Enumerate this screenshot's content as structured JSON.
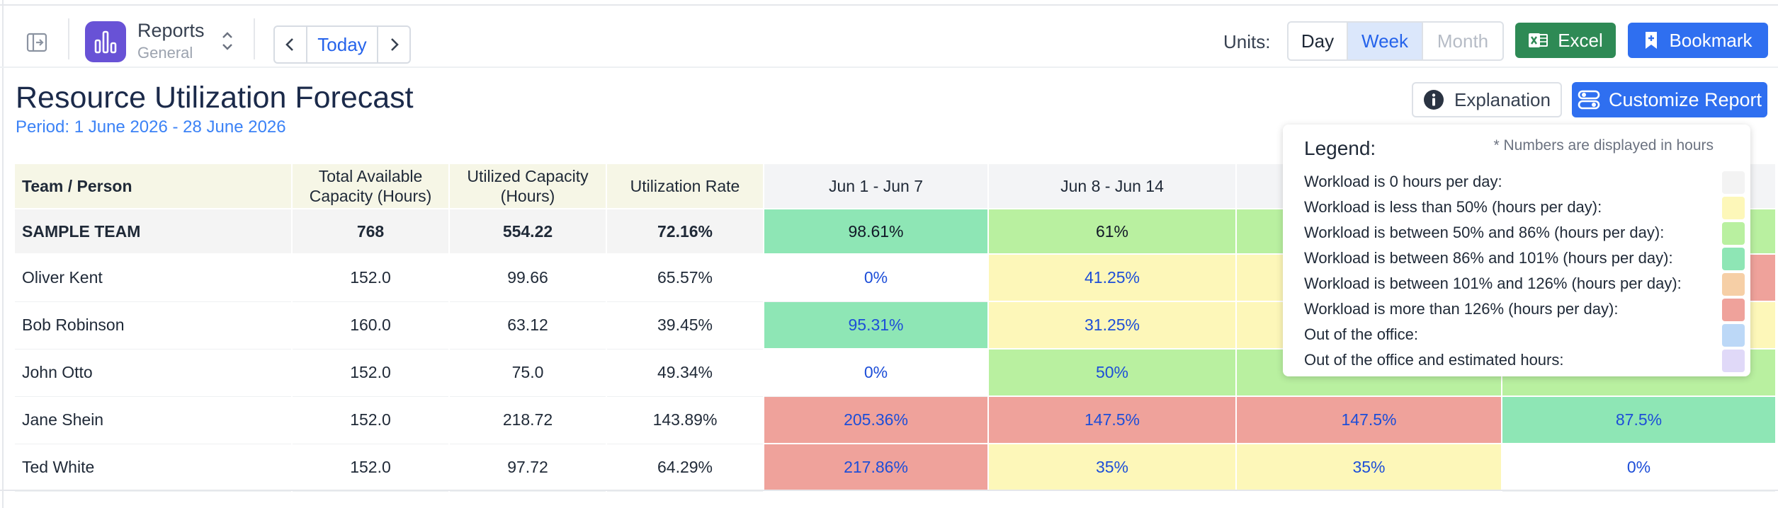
{
  "toolbar": {
    "app_title": "Reports",
    "app_subtitle": "General",
    "today_label": "Today",
    "units_label": "Units:",
    "units": [
      {
        "label": "Day",
        "selected": false
      },
      {
        "label": "Week",
        "selected": true
      },
      {
        "label": "Month",
        "selected": false,
        "disabled": true
      }
    ],
    "excel_label": "Excel",
    "bookmark_label": "Bookmark",
    "icons": [
      "sidebar-toggle-icon",
      "bar-chart-icon",
      "chevron-up-down-icon",
      "chevron-left-icon",
      "chevron-right-icon",
      "excel-icon",
      "bookmark-icon"
    ]
  },
  "report": {
    "title": "Resource Utilization Forecast",
    "period": "Period: 1 June 2026 - 28 June 2026",
    "explanation_label": "Explanation",
    "customize_label": "Customize Report"
  },
  "table": {
    "headers": {
      "team_person": "Team / Person",
      "total_capacity": "Total Available Capacity (Hours)",
      "utilized_capacity": "Utilized Capacity (Hours)",
      "utilization_rate": "Utilization Rate",
      "weeks": [
        "Jun 1 - Jun 7",
        "Jun 8 - Jun 14",
        "",
        ""
      ]
    },
    "team": {
      "name": "SAMPLE TEAM",
      "total": "768",
      "utilized": "554.22",
      "rate": "72.16%",
      "weeks": [
        "98.61%",
        "61%",
        "",
        ""
      ]
    },
    "people": [
      {
        "name": "Oliver Kent",
        "total": "152.0",
        "utilized": "99.66",
        "rate": "65.57%",
        "weeks": [
          "0%",
          "41.25%",
          "",
          ""
        ]
      },
      {
        "name": "Bob Robinson",
        "total": "160.0",
        "utilized": "63.12",
        "rate": "39.45%",
        "weeks": [
          "95.31%",
          "31.25%",
          "",
          ""
        ]
      },
      {
        "name": "John Otto",
        "total": "152.0",
        "utilized": "75.0",
        "rate": "49.34%",
        "weeks": [
          "0%",
          "50%",
          "",
          ""
        ]
      },
      {
        "name": "Jane Shein",
        "total": "152.0",
        "utilized": "218.72",
        "rate": "143.89%",
        "weeks": [
          "205.36%",
          "147.5%",
          "147.5%",
          "87.5%"
        ]
      },
      {
        "name": "Ted White",
        "total": "152.0",
        "utilized": "97.72",
        "rate": "64.29%",
        "weeks": [
          "217.86%",
          "35%",
          "35%",
          "0%"
        ]
      }
    ]
  },
  "colors": {
    "zero": "#f3f3f3",
    "under50": "#fdf7b9",
    "50to86": "#b9f0a0",
    "86to101": "#8ee6b5",
    "101to126": "#f6cfa6",
    "over126": "#efa29b",
    "out_of_office": "#bcd8f7",
    "out_of_office_est": "#e0d9f8",
    "white": "#ffffff"
  },
  "legend": {
    "title": "Legend:",
    "note": "* Numbers are displayed in hours",
    "items": [
      {
        "label": "Workload is 0 hours per day:",
        "color": "#f3f3f3"
      },
      {
        "label": "Workload is less than 50% (hours per day):",
        "color": "#fdf7b9"
      },
      {
        "label": "Workload is between 50% and 86% (hours per day):",
        "color": "#b9f0a0"
      },
      {
        "label": "Workload is between 86% and 101% (hours per day):",
        "color": "#8ee6b5"
      },
      {
        "label": "Workload is between 101% and 126% (hours per day):",
        "color": "#f6cfa6"
      },
      {
        "label": "Workload is more than 126% (hours per day):",
        "color": "#efa29b"
      },
      {
        "label": "Out of the office:",
        "color": "#bcd8f7"
      },
      {
        "label": "Out of the office and estimated hours:",
        "color": "#e0d9f8"
      }
    ]
  }
}
